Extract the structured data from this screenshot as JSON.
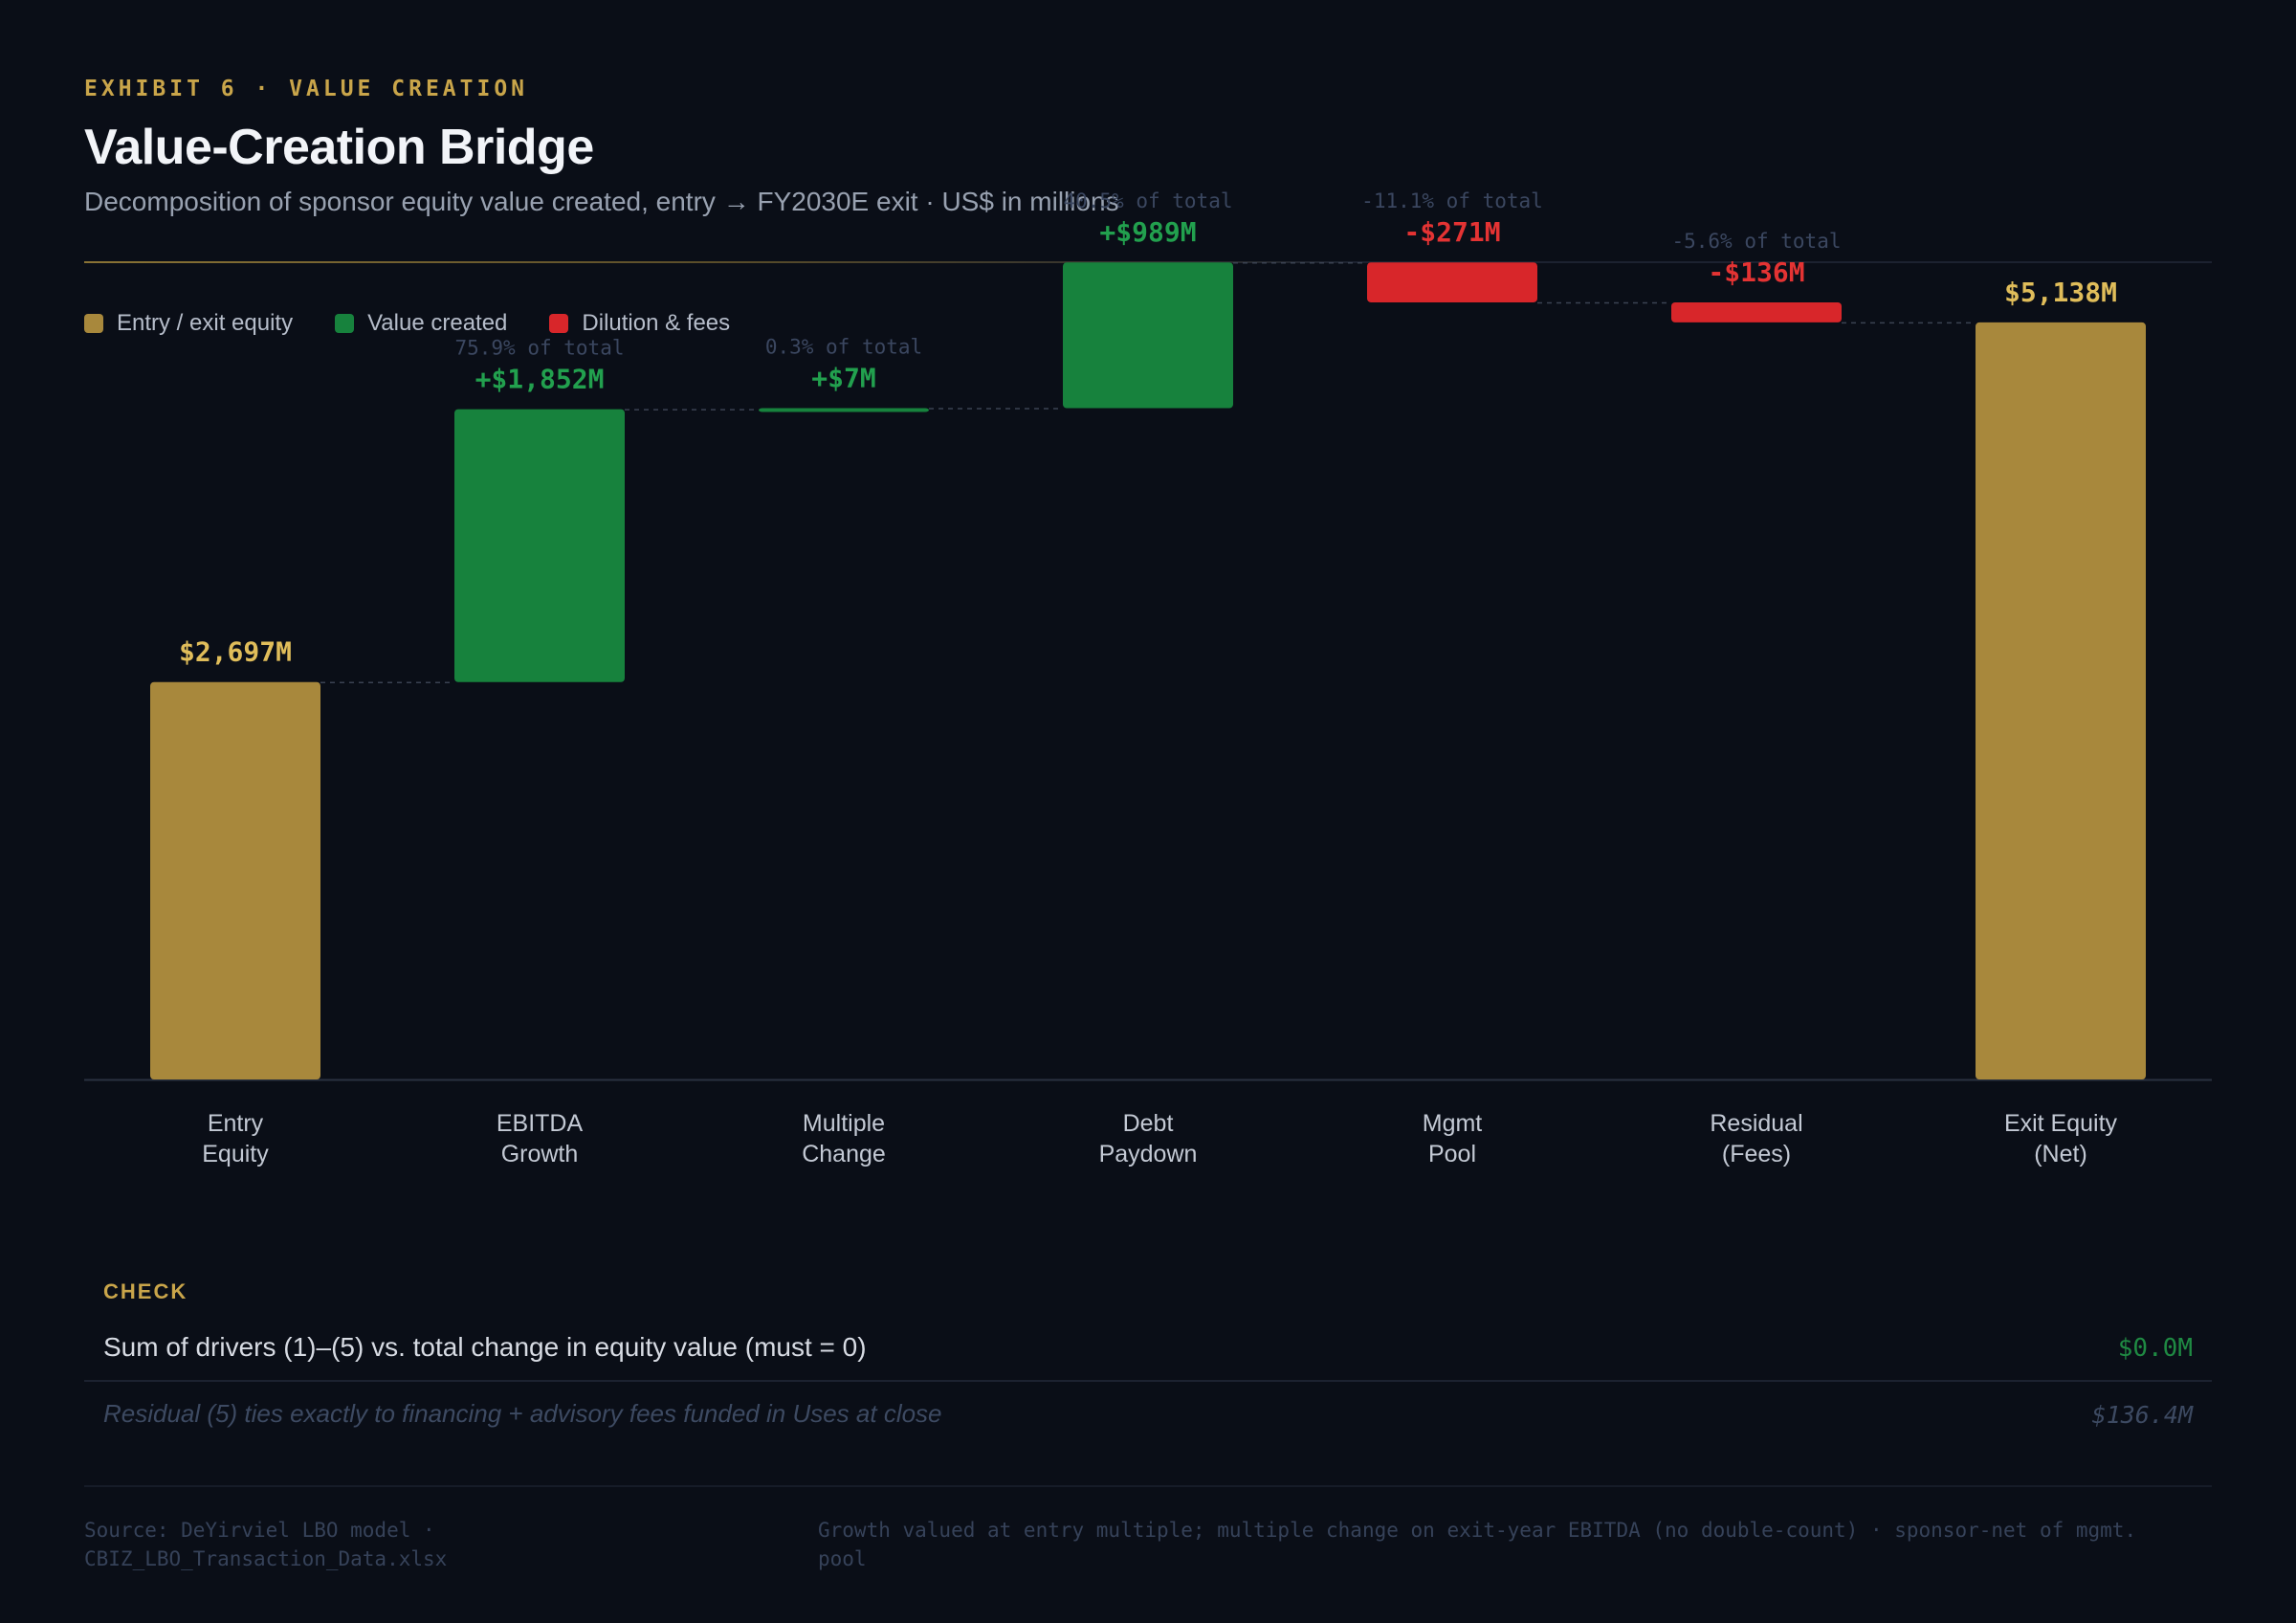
{
  "header": {
    "eyebrow": "EXHIBIT 6 · VALUE CREATION",
    "title": "Value-Creation Bridge",
    "subtitle": "Decomposition of sponsor equity value created, entry → FY2030E exit · US$ in millions"
  },
  "legend": [
    {
      "label": "Entry / exit equity",
      "color": "#a8883c"
    },
    {
      "label": "Value created",
      "color": "#17823d"
    },
    {
      "label": "Dilution & fees",
      "color": "#d8262a"
    }
  ],
  "colors": {
    "total": "#a8883c",
    "total_label": "#e0bd5a",
    "positive": "#17823d",
    "positive_label": "#22a04e",
    "negative": "#d8262a",
    "negative_label": "#e43333",
    "pct_label": "#3b4760",
    "axis": "#2a3140",
    "connector": "#3a4252",
    "category_label": "#c3c9d4"
  },
  "chart_data": {
    "type": "waterfall",
    "unit": "US$ in millions",
    "steps": [
      {
        "category": [
          "Entry",
          "Equity"
        ],
        "kind": "total",
        "value": 2697,
        "label": "$2,697M",
        "pct_label": ""
      },
      {
        "category": [
          "EBITDA",
          "Growth"
        ],
        "kind": "delta",
        "value": 1852,
        "label": "+$1,852M",
        "pct_label": "75.9% of total"
      },
      {
        "category": [
          "Multiple",
          "Change"
        ],
        "kind": "delta",
        "value": 7,
        "label": "+$7M",
        "pct_label": "0.3% of total"
      },
      {
        "category": [
          "Debt",
          "Paydown"
        ],
        "kind": "delta",
        "value": 989,
        "label": "+$989M",
        "pct_label": "40.5% of total"
      },
      {
        "category": [
          "Mgmt",
          "Pool"
        ],
        "kind": "delta",
        "value": -271,
        "label": "-$271M",
        "pct_label": "-11.1% of total"
      },
      {
        "category": [
          "Residual",
          "(Fees)"
        ],
        "kind": "delta",
        "value": -136,
        "label": "-$136M",
        "pct_label": "-5.6% of total"
      },
      {
        "category": [
          "Exit Equity",
          "(Net)"
        ],
        "kind": "total",
        "value": 5138,
        "label": "$5,138M",
        "pct_label": ""
      }
    ],
    "ylim": [
      0,
      6300
    ]
  },
  "check": {
    "label": "CHECK",
    "row_label": "Sum of drivers (1)–(5) vs. total change in equity value (must = 0)",
    "row_value": "$0.0M",
    "note_label": "Residual (5) ties exactly to financing + advisory fees funded in Uses at close",
    "note_value": "$136.4M"
  },
  "footer": {
    "source": "Source: DeYirviel LBO model · CBIZ_LBO_Transaction_Data.xlsx",
    "note": "Growth valued at entry multiple; multiple change on exit-year EBITDA (no double-count) · sponsor-net of mgmt. pool"
  }
}
